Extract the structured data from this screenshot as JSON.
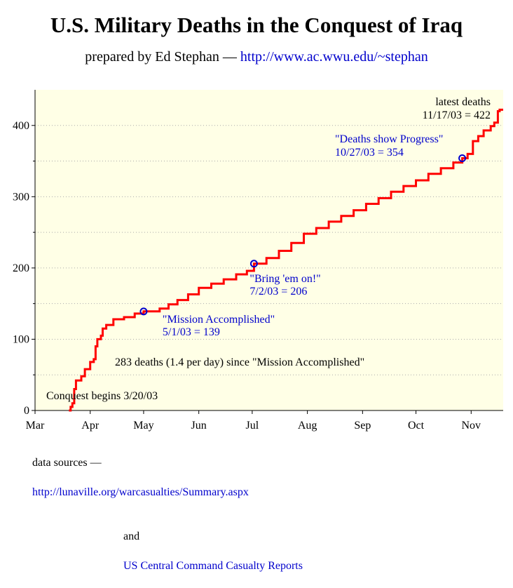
{
  "header": {
    "title": "U.S. Military Deaths in the Conquest of Iraq",
    "prepared_by": "prepared by Ed Stephan —",
    "author_url": "http://www.ac.wwu.edu/~stephan"
  },
  "footer": {
    "sources_label": "data sources —",
    "source_1": "http://lunaville.org/warcasualties/Summary.aspx",
    "and_label": "and",
    "source_2": "US Central Command Casualty Reports"
  },
  "colors": {
    "line": "#ff0000",
    "marker": "#0000cc",
    "plot_bg": "#ffffe6",
    "annotation": "#0000cc",
    "link": "#0000cc"
  },
  "chart_data": {
    "type": "line",
    "title": "U.S. Military Deaths in the Conquest of Iraq",
    "xlabel": "",
    "ylabel": "",
    "x_axis_type": "date",
    "xlim": [
      "2003-03-01",
      "2003-11-19"
    ],
    "ylim": [
      0,
      450
    ],
    "x_ticks": [
      {
        "label": "Mar",
        "date": "2003-03-01"
      },
      {
        "label": "Apr",
        "date": "2003-04-01"
      },
      {
        "label": "May",
        "date": "2003-05-01"
      },
      {
        "label": "Jun",
        "date": "2003-06-01"
      },
      {
        "label": "Jul",
        "date": "2003-07-01"
      },
      {
        "label": "Aug",
        "date": "2003-08-01"
      },
      {
        "label": "Sep",
        "date": "2003-09-01"
      },
      {
        "label": "Oct",
        "date": "2003-10-01"
      },
      {
        "label": "Nov",
        "date": "2003-11-01"
      }
    ],
    "y_ticks": [
      0,
      100,
      200,
      300,
      400
    ],
    "y_gridlines": [
      50,
      150,
      250,
      350
    ],
    "grid": true,
    "series": [
      {
        "values": [
          [
            "2003-03-20",
            0
          ],
          [
            "2003-03-21",
            5
          ],
          [
            "2003-03-22",
            10
          ],
          [
            "2003-03-23",
            30
          ],
          [
            "2003-03-24",
            42
          ],
          [
            "2003-03-27",
            48
          ],
          [
            "2003-03-29",
            58
          ],
          [
            "2003-04-01",
            68
          ],
          [
            "2003-04-03",
            72
          ],
          [
            "2003-04-04",
            90
          ],
          [
            "2003-04-05",
            100
          ],
          [
            "2003-04-07",
            105
          ],
          [
            "2003-04-08",
            115
          ],
          [
            "2003-04-10",
            120
          ],
          [
            "2003-04-14",
            128
          ],
          [
            "2003-04-20",
            131
          ],
          [
            "2003-04-26",
            136
          ],
          [
            "2003-05-01",
            139
          ],
          [
            "2003-05-10",
            143
          ],
          [
            "2003-05-15",
            149
          ],
          [
            "2003-05-20",
            155
          ],
          [
            "2003-05-26",
            163
          ],
          [
            "2003-06-01",
            172
          ],
          [
            "2003-06-08",
            178
          ],
          [
            "2003-06-15",
            184
          ],
          [
            "2003-06-22",
            191
          ],
          [
            "2003-06-28",
            196
          ],
          [
            "2003-07-02",
            206
          ],
          [
            "2003-07-09",
            214
          ],
          [
            "2003-07-16",
            224
          ],
          [
            "2003-07-23",
            235
          ],
          [
            "2003-07-30",
            248
          ],
          [
            "2003-08-06",
            256
          ],
          [
            "2003-08-13",
            265
          ],
          [
            "2003-08-20",
            273
          ],
          [
            "2003-08-27",
            281
          ],
          [
            "2003-09-03",
            290
          ],
          [
            "2003-09-10",
            298
          ],
          [
            "2003-09-17",
            307
          ],
          [
            "2003-09-24",
            315
          ],
          [
            "2003-10-01",
            323
          ],
          [
            "2003-10-08",
            332
          ],
          [
            "2003-10-15",
            340
          ],
          [
            "2003-10-22",
            348
          ],
          [
            "2003-10-27",
            354
          ],
          [
            "2003-10-30",
            360
          ],
          [
            "2003-11-02",
            378
          ],
          [
            "2003-11-05",
            385
          ],
          [
            "2003-11-08",
            393
          ],
          [
            "2003-11-12",
            399
          ],
          [
            "2003-11-14",
            404
          ],
          [
            "2003-11-16",
            420
          ],
          [
            "2003-11-17",
            422
          ],
          [
            "2003-11-19",
            422
          ]
        ]
      }
    ],
    "markers": [
      {
        "date": "2003-05-01",
        "value": 139
      },
      {
        "date": "2003-07-02",
        "value": 206
      },
      {
        "date": "2003-10-27",
        "value": 354
      }
    ],
    "annotations": [
      {
        "line1": "\"Mission Accomplished\"",
        "line2": "5/1/03 = 139"
      },
      {
        "line1": "\"Bring 'em on!\"",
        "line2": "7/2/03 = 206"
      },
      {
        "line1": "\"Deaths show Progress\"",
        "line2": "10/27/03 = 354"
      },
      {
        "line1": "latest deaths",
        "line2": "11/17/03 = 422"
      }
    ],
    "conquest_note": "Conquest begins 3/20/03",
    "summary_note": "283 deaths (1.4 per day)  since \"Mission Accomplished\""
  }
}
